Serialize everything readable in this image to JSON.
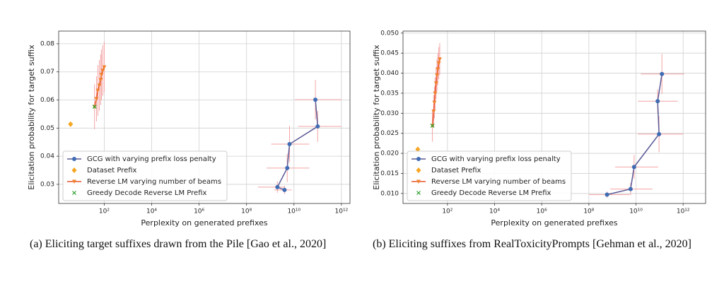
{
  "chart_data": [
    {
      "type": "errorbar",
      "xlabel": "Perplexity on generated prefixes",
      "ylabel": "Elicitation probability for target suffix",
      "caption": "(a) Eliciting target suffixes drawn from the Pile [Gao et al., 2020]",
      "xscale": "log",
      "grid": true,
      "legend": "lower left",
      "xlim": [
        1.2,
        2300000000000
      ],
      "ylim": [
        0.0232,
        0.0845
      ],
      "xticks": [
        {
          "value": 100,
          "label": "10²"
        },
        {
          "value": 10000,
          "label": "10⁴"
        },
        {
          "value": 1000000,
          "label": "10⁶"
        },
        {
          "value": 100000000,
          "label": "10⁸"
        },
        {
          "value": 10000000000,
          "label": "10¹⁰"
        },
        {
          "value": 1000000000000,
          "label": "10¹²"
        }
      ],
      "yticks": [
        0.03,
        0.04,
        0.05,
        0.06,
        0.07,
        0.08
      ],
      "errorbar_color": "#f4a3a3",
      "series": [
        {
          "name": "GCG with varying prefix loss penalty",
          "color": "#3f6cb4",
          "line_color": "#5a5a96",
          "marker": "o",
          "style": "line",
          "x": [
            80000000000,
            100000000000,
            6500000000,
            5200000000,
            2000000000,
            4000000000
          ],
          "values": [
            0.0601,
            0.0506,
            0.0443,
            0.0358,
            0.029,
            0.028
          ],
          "yerr": [
            0.007,
            0.0055,
            0.0065,
            0.005,
            0.002,
            0.0015
          ],
          "xerr": [
            [
              11000000000,
              1000000000000
            ],
            [
              15000000000,
              1000000000000
            ],
            [
              1100000000,
              44000000000
            ],
            [
              700000000,
              44000000000
            ],
            [
              300000000,
              4000000000
            ],
            [
              1500000000,
              8000000000
            ]
          ]
        },
        {
          "name": "Dataset Prefix",
          "color": "#f5a623",
          "marker": "D",
          "style": "points",
          "x": [
            3.8
          ],
          "values": [
            0.0514
          ]
        },
        {
          "name": "Reverse LM varying number of beams",
          "color": "#f0812e",
          "line_color": "#e8552a",
          "marker": "v",
          "style": "line",
          "x": [
            39,
            47,
            54,
            62,
            71,
            76,
            87,
            100
          ],
          "values": [
            0.0576,
            0.0604,
            0.0634,
            0.0652,
            0.0672,
            0.069,
            0.0705,
            0.0717
          ],
          "yerr": [
            0.008,
            0.008,
            0.009,
            0.009,
            0.009,
            0.009,
            0.009,
            0.009
          ]
        },
        {
          "name": "Greedy Decode Reverse LM Prefix",
          "color": "#2ca02c",
          "marker": "x",
          "style": "points",
          "x": [
            39
          ],
          "values": [
            0.0576
          ]
        }
      ]
    },
    {
      "type": "errorbar",
      "xlabel": "Perplexity on generated prefixes",
      "ylabel": "Elicitation probability for target suffix",
      "caption": "(b) Eliciting suffixes from RealToxicityPrompts [Gehman et al., 2020]",
      "xscale": "log",
      "grid": true,
      "legend": "lower left",
      "xlim": [
        1.3,
        9000000000000
      ],
      "ylim": [
        0.0075,
        0.0505
      ],
      "xticks": [
        {
          "value": 100,
          "label": "10²"
        },
        {
          "value": 10000,
          "label": "10⁴"
        },
        {
          "value": 1000000,
          "label": "10⁶"
        },
        {
          "value": 100000000,
          "label": "10⁸"
        },
        {
          "value": 10000000000,
          "label": "10¹⁰"
        },
        {
          "value": 1000000000000,
          "label": "10¹²"
        }
      ],
      "yticks": [
        {
          "value": 0.01,
          "label": "0.010"
        },
        {
          "value": 0.015,
          "label": "0.015"
        },
        {
          "value": 0.02,
          "label": "0.020"
        },
        {
          "value": 0.025,
          "label": "0.025"
        },
        {
          "value": 0.03,
          "label": "0.030"
        },
        {
          "value": 0.035,
          "label": "0.035"
        },
        {
          "value": 0.04,
          "label": "0.040"
        },
        {
          "value": 0.045,
          "label": "0.045"
        },
        {
          "value": 0.05,
          "label": "0.050"
        }
      ],
      "errorbar_color": "#f4a3a3",
      "series": [
        {
          "name": "GCG with varying prefix loss penalty",
          "color": "#3f6cb4",
          "line_color": "#5a5a96",
          "marker": "o",
          "style": "line",
          "x": [
            126000000000,
            83000000000,
            95000000000,
            8300000000,
            5900000000,
            590000000
          ],
          "values": [
            0.0398,
            0.033,
            0.0248,
            0.0166,
            0.0111,
            0.0097
          ],
          "yerr": [
            0.005,
            0.003,
            0.0045,
            0.003,
            0.0015,
            0.0008
          ],
          "xerr": [
            [
              16000000000,
              1100000000000
            ],
            [
              12000000000,
              590000000000
            ],
            [
              12000000000,
              1000000000000
            ],
            [
              1300000000,
              88000000000
            ],
            [
              800000000,
              50000000000
            ],
            [
              100000000,
              5400000000
            ]
          ]
        },
        {
          "name": "Dataset Prefix",
          "color": "#f5a623",
          "marker": "D",
          "style": "points",
          "x": [
            5.5
          ],
          "values": [
            0.021
          ]
        },
        {
          "name": "Reverse LM varying number of beams",
          "color": "#f0812e",
          "line_color": "#e8552a",
          "marker": "v",
          "style": "line",
          "x": [
            23,
            26,
            28,
            30,
            33,
            36,
            39,
            43,
            47
          ],
          "values": [
            0.0269,
            0.0305,
            0.0327,
            0.035,
            0.0375,
            0.0395,
            0.041,
            0.0425,
            0.0435
          ],
          "yerr": [
            0.004,
            0.004,
            0.004,
            0.004,
            0.004,
            0.004,
            0.004,
            0.004,
            0.004
          ]
        },
        {
          "name": "Greedy Decode Reverse LM Prefix",
          "color": "#2ca02c",
          "marker": "x",
          "style": "points",
          "x": [
            23
          ],
          "values": [
            0.0269
          ]
        }
      ]
    }
  ]
}
